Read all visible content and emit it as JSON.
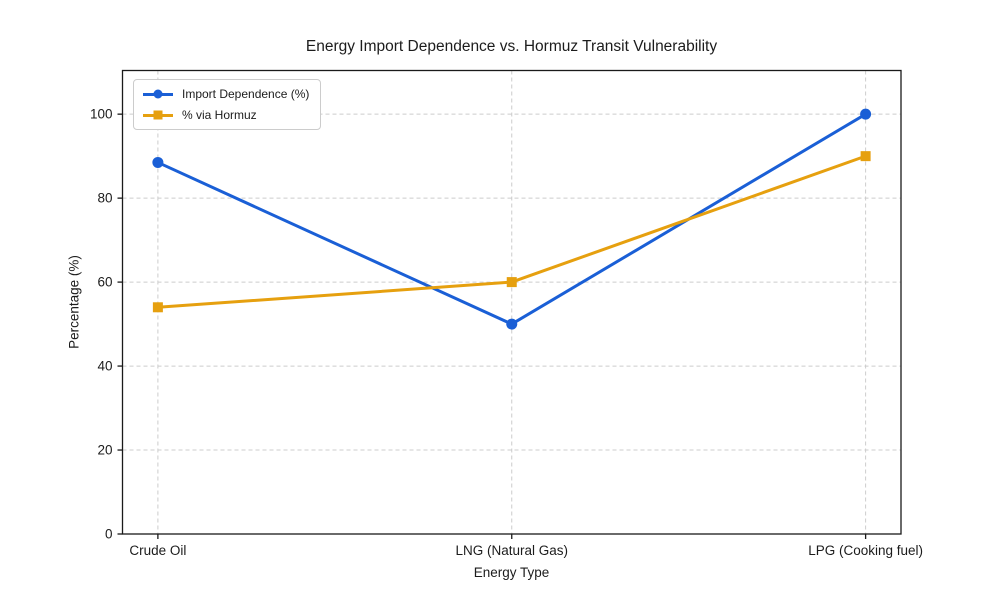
{
  "chart_data": {
    "type": "line",
    "title": "Energy Import Dependence vs. Hormuz Transit Vulnerability",
    "xlabel": "Energy Type",
    "ylabel": "Percentage (%)",
    "categories": [
      "Crude Oil",
      "LNG (Natural Gas)",
      "LPG (Cooking fuel)"
    ],
    "series": [
      {
        "name": "Import Dependence (%)",
        "values": [
          88.5,
          50,
          100
        ],
        "color": "#1a5fd6",
        "marker": "circle"
      },
      {
        "name": "% via Hormuz",
        "values": [
          54,
          60,
          90
        ],
        "color": "#e6a00f",
        "marker": "square"
      }
    ],
    "yticks": [
      0,
      20,
      40,
      60,
      80,
      100
    ],
    "ylim": [
      0,
      110.4
    ],
    "xlim": [
      -0.1,
      2.1
    ],
    "grid": true,
    "legend_position": "upper left"
  }
}
